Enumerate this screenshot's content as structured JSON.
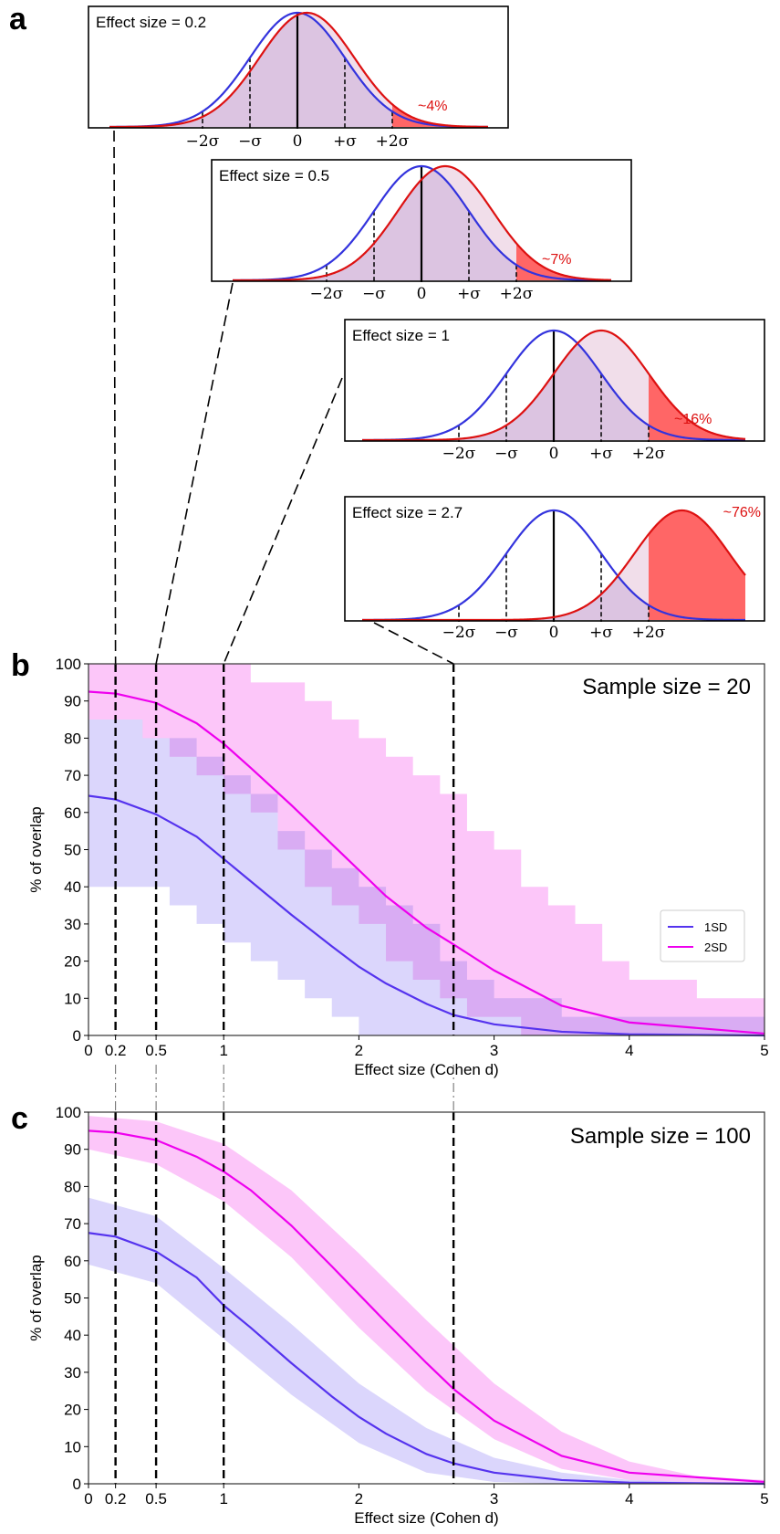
{
  "panel_labels": {
    "a": "a",
    "b": "b",
    "c": "c"
  },
  "colors": {
    "blue_line": "#3333dd",
    "red_line": "#dd1111",
    "red_fill": "#ff6666",
    "overlap_fill": "#b8a8e0",
    "sd1_line": "#5533ee",
    "sd1_band": "#cfc8fb",
    "sd2_line": "#ee00ee",
    "sd2_band": "#fcbcf8",
    "percent_text": "#dd1111"
  },
  "chart_data": [
    {
      "type": "line",
      "panel": "a",
      "title": "Effect size = 0.2",
      "distribution_shift": 0.2,
      "tick_labels": [
        "−2σ",
        "−σ",
        "0",
        "+σ",
        "+2σ"
      ],
      "annotation": "~4%"
    },
    {
      "type": "line",
      "panel": "a",
      "title": "Effect size = 0.5",
      "distribution_shift": 0.5,
      "tick_labels": [
        "−2σ",
        "−σ",
        "0",
        "+σ",
        "+2σ"
      ],
      "annotation": "~7%"
    },
    {
      "type": "line",
      "panel": "a",
      "title": "Effect size = 1",
      "distribution_shift": 1,
      "tick_labels": [
        "−2σ",
        "−σ",
        "0",
        "+σ",
        "+2σ"
      ],
      "annotation": "~16%"
    },
    {
      "type": "line",
      "panel": "a",
      "title": "Effect size = 2.7",
      "distribution_shift": 2.7,
      "tick_labels": [
        "−2σ",
        "−σ",
        "0",
        "+σ",
        "+2σ"
      ],
      "annotation": "~76%"
    },
    {
      "type": "area",
      "panel": "b",
      "title": "Sample size = 20",
      "xlabel": "Effect size (Cohen d)",
      "ylabel": "% of overlap",
      "xlim": [
        0,
        5
      ],
      "ylim": [
        0,
        100
      ],
      "x_tick_labels": [
        "0",
        "0.2",
        "0.5",
        "1",
        "2",
        "3",
        "4",
        "5"
      ],
      "y_tick_labels": [
        "0",
        "10",
        "20",
        "30",
        "40",
        "50",
        "60",
        "70",
        "80",
        "90",
        "100"
      ],
      "dashed_lines_x": [
        0.2,
        0.5,
        1,
        2.7
      ],
      "legend": {
        "position": "right",
        "entries": [
          "1SD",
          "2SD"
        ]
      },
      "series": [
        {
          "name": "1SD",
          "x": [
            0,
            0.2,
            0.5,
            0.8,
            1,
            1.2,
            1.5,
            1.8,
            2,
            2.2,
            2.5,
            2.7,
            3,
            3.5,
            4,
            5
          ],
          "values": [
            64.5,
            63.5,
            59.5,
            53.5,
            47.5,
            41.5,
            32.5,
            24,
            18.5,
            14,
            8.5,
            5.5,
            3,
            1,
            0.3,
            0
          ],
          "band_x": [
            0,
            0.2,
            0.4,
            0.6,
            0.8,
            1.0,
            1.2,
            1.4,
            1.6,
            1.8,
            2.0,
            2.2,
            2.4,
            2.6,
            2.8,
            3.0,
            3.5,
            4,
            5
          ],
          "band_upper": [
            85,
            85,
            80,
            80,
            75,
            70,
            65,
            55,
            50,
            45,
            40,
            35,
            30,
            20,
            15,
            10,
            5,
            5,
            0
          ],
          "band_lower": [
            40,
            40,
            40,
            35,
            30,
            25,
            20,
            15,
            10,
            5,
            0,
            0,
            0,
            0,
            0,
            0,
            0,
            0,
            0
          ]
        },
        {
          "name": "2SD",
          "x": [
            0,
            0.2,
            0.5,
            0.8,
            1,
            1.2,
            1.5,
            1.8,
            2,
            2.2,
            2.5,
            2.7,
            3,
            3.5,
            4,
            5
          ],
          "values": [
            92.5,
            92,
            89.5,
            84,
            78.5,
            72,
            62,
            51.5,
            44.5,
            37.5,
            29,
            24.5,
            17.5,
            8,
            3.5,
            0.5
          ],
          "band_x": [
            0,
            0.2,
            0.4,
            0.6,
            0.8,
            1.0,
            1.2,
            1.4,
            1.6,
            1.8,
            2.0,
            2.2,
            2.4,
            2.6,
            2.8,
            3.0,
            3.2,
            3.4,
            3.6,
            3.8,
            4.0,
            4.5,
            5
          ],
          "band_upper": [
            100,
            100,
            100,
            100,
            100,
            100,
            95,
            95,
            90,
            85,
            80,
            75,
            70,
            65,
            55,
            50,
            40,
            35,
            30,
            20,
            15,
            10,
            5
          ],
          "band_lower": [
            85,
            85,
            80,
            75,
            70,
            65,
            60,
            50,
            40,
            35,
            30,
            20,
            15,
            10,
            5,
            5,
            0,
            0,
            0,
            0,
            0,
            0,
            0
          ]
        }
      ]
    },
    {
      "type": "area",
      "panel": "c",
      "title": "Sample size = 100",
      "xlabel": "Effect size (Cohen d)",
      "ylabel": "% of overlap",
      "xlim": [
        0,
        5
      ],
      "ylim": [
        0,
        100
      ],
      "x_tick_labels": [
        "0",
        "0.2",
        "0.5",
        "1",
        "2",
        "3",
        "4",
        "5"
      ],
      "y_tick_labels": [
        "0",
        "10",
        "20",
        "30",
        "40",
        "50",
        "60",
        "70",
        "80",
        "90",
        "100"
      ],
      "dashed_lines_x": [
        0.2,
        0.5,
        1,
        2.7
      ],
      "series": [
        {
          "name": "1SD",
          "x": [
            0,
            0.2,
            0.5,
            0.8,
            1,
            1.2,
            1.5,
            1.8,
            2,
            2.2,
            2.5,
            2.7,
            3,
            3.5,
            4,
            5
          ],
          "values": [
            67.5,
            66.5,
            62.5,
            55.5,
            48,
            42,
            32.5,
            23.5,
            18,
            13.5,
            8,
            5.5,
            3,
            1,
            0.3,
            0
          ],
          "band_x": [
            0,
            0.5,
            1,
            1.5,
            2,
            2.5,
            3,
            3.5,
            4,
            5
          ],
          "band_upper": [
            77,
            72,
            58,
            43,
            27,
            15,
            7,
            3,
            1,
            0
          ],
          "band_lower": [
            59,
            54,
            39,
            24,
            11,
            3,
            0.5,
            0,
            0,
            0
          ]
        },
        {
          "name": "2SD",
          "x": [
            0,
            0.2,
            0.5,
            0.8,
            1,
            1.2,
            1.5,
            1.8,
            2,
            2.2,
            2.5,
            2.7,
            3,
            3.5,
            4,
            5
          ],
          "values": [
            95,
            94.5,
            92.5,
            88,
            84,
            79,
            69.5,
            58.5,
            51,
            43.5,
            32.5,
            25.5,
            17,
            7.5,
            3,
            0.5
          ],
          "band_x": [
            0,
            0.5,
            1,
            1.5,
            2,
            2.5,
            3,
            3.5,
            4,
            4.5,
            5
          ],
          "band_upper": [
            99,
            97.5,
            91.5,
            79,
            62,
            44,
            27,
            14,
            6,
            2,
            1
          ],
          "band_lower": [
            90,
            86,
            76,
            61,
            42,
            25,
            12,
            4,
            1,
            0,
            0
          ]
        }
      ]
    }
  ]
}
